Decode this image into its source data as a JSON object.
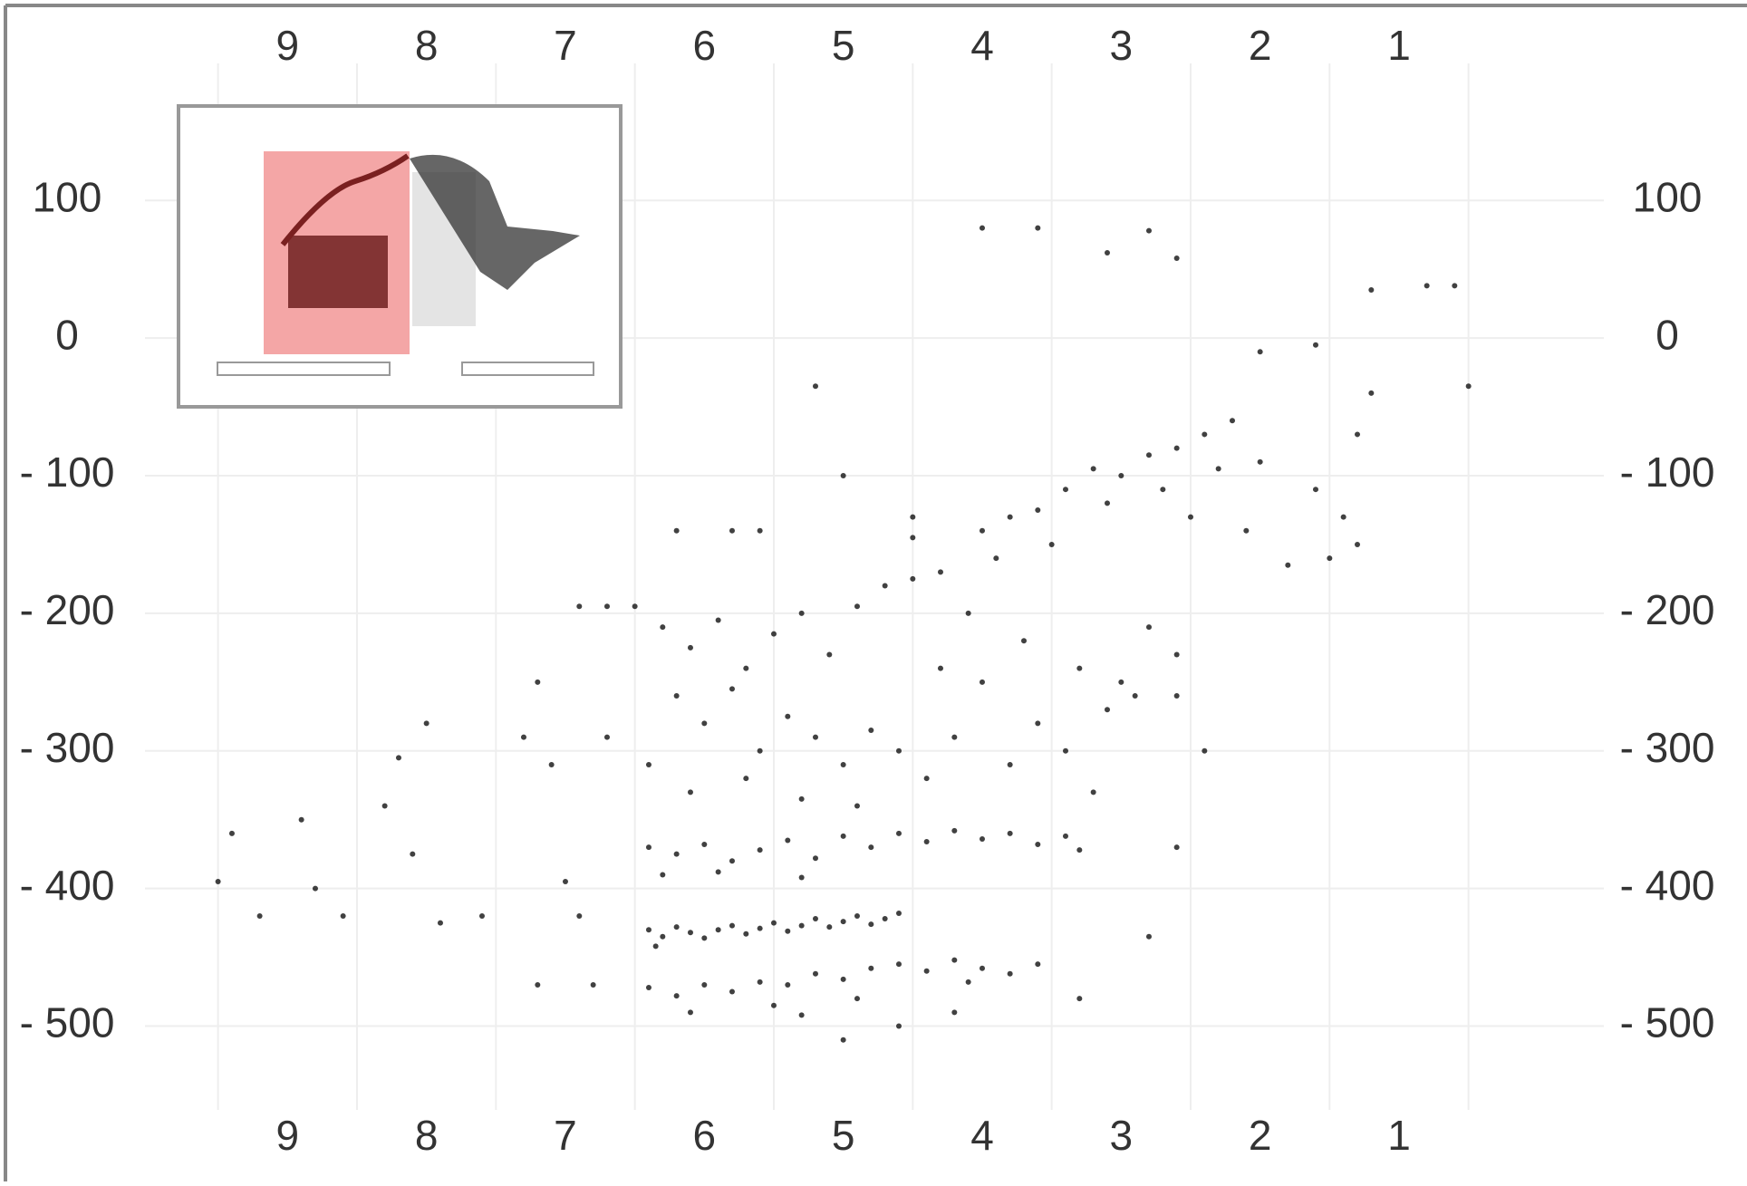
{
  "chart_data": {
    "type": "scatter",
    "color": "#111111",
    "grid": true,
    "xlim": [
      10.5,
      -0.5
    ],
    "ylim": [
      -600,
      230
    ],
    "xticks": [
      9,
      8,
      7,
      6,
      5,
      4,
      3,
      2,
      1
    ],
    "xminorticks": [
      9.5,
      8.5,
      7.5,
      6.5,
      5.5,
      4.5,
      3.5,
      2.5,
      1.5,
      0.5
    ],
    "yticks": [
      100,
      0,
      {
        "value": -100,
        "label": "- 100"
      },
      {
        "value": -200,
        "label": "- 200"
      },
      {
        "value": -300,
        "label": "- 300"
      },
      {
        "value": -400,
        "label": "- 400"
      },
      {
        "value": -500,
        "label": "- 500"
      }
    ],
    "x": [
      6.4,
      6.3,
      6.2,
      6.1,
      6.0,
      5.9,
      5.8,
      5.7,
      5.6,
      5.5,
      5.4,
      5.3,
      5.2,
      5.1,
      5.0,
      4.9,
      4.8,
      4.7,
      4.6,
      6.35,
      6.4,
      6.2,
      6.0,
      5.8,
      5.6,
      5.4,
      5.2,
      5.0,
      4.8,
      4.6,
      4.4,
      4.2,
      4.0,
      3.8,
      3.6,
      3.4,
      3.3,
      6.3,
      5.9,
      5.3,
      6.4,
      6.2,
      6.0,
      5.8,
      5.6,
      5.4,
      5.2,
      5.0,
      4.8,
      4.6,
      4.4,
      4.2,
      4.0,
      3.8,
      3.6,
      5.5,
      6.1,
      4.9,
      5.3,
      4.1,
      6.3,
      6.1,
      5.9,
      5.7,
      5.5,
      5.3,
      5.1,
      4.9,
      4.7,
      4.5,
      6.2,
      6.0,
      5.8,
      5.6,
      5.4,
      5.2,
      5.0,
      4.8,
      4.6,
      4.4,
      6.4,
      6.1,
      5.7,
      5.3,
      4.9,
      4.2,
      4.0,
      3.8,
      3.6,
      3.4,
      3.2,
      3.1,
      3.0,
      2.8,
      2.9,
      3.3,
      3.7,
      4.1,
      4.3,
      2.6,
      4.0,
      3.8,
      3.6,
      3.4,
      3.2,
      3.0,
      2.8,
      2.6,
      2.4,
      2.2,
      3.5,
      3.1,
      2.7,
      2.3,
      2.0,
      1.6,
      1.4,
      1.3,
      1.5,
      1.8,
      2.1,
      2.5,
      3.9,
      4.3,
      4.5,
      4.0,
      3.6,
      3.1,
      2.8,
      2.6,
      1.2,
      0.6,
      0.8,
      1.6,
      2.0,
      0.5,
      1.2,
      1.3,
      5.2,
      5.0,
      4.5,
      9.4,
      9.5,
      9.2,
      8.9,
      8.8,
      8.6,
      8.3,
      8.2,
      8.1,
      8.0,
      7.9,
      7.6,
      7.2,
      7.1,
      7.0,
      7.2,
      6.8,
      6.9,
      6.7,
      7.3,
      6.9,
      6.7,
      6.5,
      6.2,
      5.8,
      5.6,
      2.6,
      2.4,
      2.6,
      2.8,
      4.6,
      4.2,
      3.3,
      5.0
    ],
    "values": [
      -430,
      -435,
      -428,
      -432,
      -436,
      -430,
      -427,
      -433,
      -429,
      -425,
      -431,
      -427,
      -422,
      -428,
      -424,
      -420,
      -426,
      -422,
      -418,
      -442,
      -370,
      -375,
      -368,
      -380,
      -372,
      -365,
      -378,
      -362,
      -370,
      -360,
      -366,
      -358,
      -364,
      -360,
      -368,
      -362,
      -372,
      -390,
      -388,
      -392,
      -472,
      -478,
      -470,
      -475,
      -468,
      -470,
      -462,
      -466,
      -458,
      -455,
      -460,
      -452,
      -458,
      -462,
      -455,
      -485,
      -490,
      -480,
      -492,
      -468,
      -210,
      -225,
      -205,
      -240,
      -215,
      -200,
      -230,
      -195,
      -180,
      -175,
      -260,
      -280,
      -255,
      -300,
      -275,
      -290,
      -310,
      -285,
      -300,
      -320,
      -310,
      -330,
      -320,
      -335,
      -340,
      -290,
      -250,
      -310,
      -280,
      -300,
      -330,
      -270,
      -250,
      -210,
      -260,
      -240,
      -220,
      -200,
      -240,
      -230,
      -140,
      -130,
      -125,
      -110,
      -95,
      -100,
      -85,
      -80,
      -70,
      -60,
      -150,
      -120,
      -110,
      -95,
      -90,
      -110,
      -130,
      -150,
      -160,
      -165,
      -140,
      -130,
      -160,
      -170,
      -145,
      80,
      80,
      62,
      78,
      58,
      35,
      38,
      38,
      -5,
      -10,
      -35,
      -40,
      -70,
      -35,
      -100,
      -130,
      -360,
      -395,
      -420,
      -350,
      -400,
      -420,
      -340,
      -305,
      -375,
      -280,
      -425,
      -420,
      -250,
      -310,
      -395,
      -470,
      -470,
      -420,
      -290,
      -290,
      -195,
      -195,
      -195,
      -140,
      -140,
      -140,
      -260,
      -300,
      -370,
      -435,
      -500,
      -490,
      -480,
      -510
    ]
  }
}
